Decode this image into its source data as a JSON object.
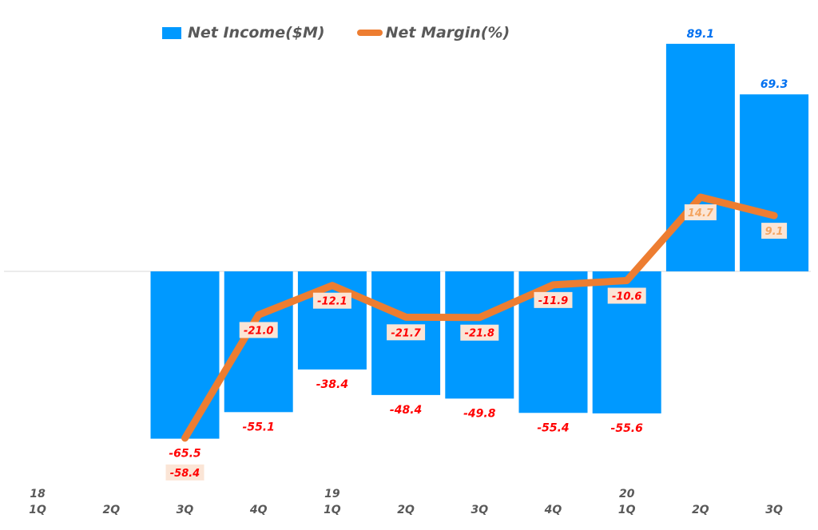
{
  "chart_data": {
    "type": "bar+line",
    "categories": [
      "1Q",
      "2Q",
      "3Q",
      "4Q",
      "1Q",
      "2Q",
      "3Q",
      "4Q",
      "1Q",
      "2Q",
      "3Q"
    ],
    "year_labels": [
      "18",
      "",
      "",
      "",
      "19",
      "",
      "",
      "",
      "20",
      "",
      ""
    ],
    "series": [
      {
        "name": "Net Income($M)",
        "type": "bar",
        "axis": "primary",
        "color": "#0099ff",
        "values": [
          null,
          null,
          -65.5,
          -55.1,
          -38.4,
          -48.4,
          -49.8,
          -55.4,
          -55.6,
          89.1,
          69.3
        ],
        "labels": [
          "",
          "",
          "-65.5",
          "-55.1",
          "-38.4",
          "-48.4",
          "-49.8",
          "-55.4",
          "-55.6",
          "89.1",
          "69.3"
        ]
      },
      {
        "name": "Net Margin(%)",
        "type": "line",
        "axis": "secondary",
        "color": "#ed7d31",
        "values": [
          null,
          null,
          -58.4,
          -21.0,
          -12.1,
          -21.7,
          -21.8,
          -11.9,
          -10.6,
          14.7,
          9.1
        ],
        "labels": [
          "",
          "",
          "-58.4",
          "-21.0",
          "-12.1",
          "-21.7",
          "-21.8",
          "-11.9",
          "-10.6",
          "14.7",
          "9.1"
        ]
      }
    ],
    "legend": "top",
    "grid": false,
    "colors": {
      "negative_label": "#ff0000",
      "positive_bar_label": "#0070f0",
      "positive_line_label": "#f4a460",
      "line_label_bg": "#fbe5d6"
    }
  }
}
